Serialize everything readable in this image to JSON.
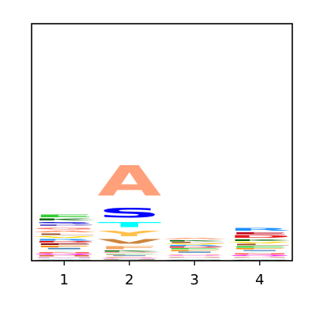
{
  "chart_data": {
    "type": "sequence-logo",
    "title": "",
    "xlabel": "",
    "ylabel": "",
    "ylim": [
      0,
      4.32
    ],
    "categories": [
      "1",
      "2",
      "3",
      "4"
    ],
    "grid": false,
    "positions": [
      {
        "label": "1",
        "stack": [
          {
            "letter": "W",
            "value": 0.02,
            "color": "#8b4513"
          },
          {
            "letter": "C",
            "value": 0.02,
            "color": "#20b2aa"
          },
          {
            "letter": "M",
            "value": 0.03,
            "color": "#dda0dd"
          },
          {
            "letter": "H",
            "value": 0.03,
            "color": "#d2691e"
          },
          {
            "letter": "Q",
            "value": 0.03,
            "color": "#ff00ff"
          },
          {
            "letter": "N",
            "value": 0.03,
            "color": "#ff6347"
          },
          {
            "letter": "T",
            "value": 0.04,
            "color": "#e0ffff"
          },
          {
            "letter": "I",
            "value": 0.04,
            "color": "#4682b4"
          },
          {
            "letter": "F",
            "value": 0.04,
            "color": "#ff8c00"
          },
          {
            "letter": "E",
            "value": 0.04,
            "color": "#8b0000"
          },
          {
            "letter": "D",
            "value": 0.04,
            "color": "#e41a1c"
          },
          {
            "letter": "R",
            "value": 0.05,
            "color": "#1e90ff"
          },
          {
            "letter": "V",
            "value": 0.05,
            "color": "#ffd700"
          },
          {
            "letter": "L",
            "value": 0.05,
            "color": "#a0522d"
          },
          {
            "letter": "A",
            "value": 0.05,
            "color": "#ff7f50"
          },
          {
            "letter": "G",
            "value": 0.06,
            "color": "#fa8072"
          },
          {
            "letter": "P",
            "value": 0.05,
            "color": "#6a5acd"
          },
          {
            "letter": "S",
            "value": 0.05,
            "color": "#0000cd"
          },
          {
            "letter": "K",
            "value": 0.06,
            "color": "#006400"
          },
          {
            "letter": "E",
            "value": 0.07,
            "color": "#32cd32"
          }
        ]
      },
      {
        "label": "2",
        "stack": [
          {
            "letter": "W",
            "value": 0.01,
            "color": "#8b4513"
          },
          {
            "letter": "C",
            "value": 0.01,
            "color": "#20b2aa"
          },
          {
            "letter": "H",
            "value": 0.01,
            "color": "#d2691e"
          },
          {
            "letter": "M",
            "value": 0.01,
            "color": "#dda0dd"
          },
          {
            "letter": "Q",
            "value": 0.02,
            "color": "#ff00ff"
          },
          {
            "letter": "F",
            "value": 0.02,
            "color": "#ff8c00"
          },
          {
            "letter": "I",
            "value": 0.02,
            "color": "#4682b4"
          },
          {
            "letter": "L",
            "value": 0.02,
            "color": "#a0522d"
          },
          {
            "letter": "E",
            "value": 0.02,
            "color": "#32cd32"
          },
          {
            "letter": "D",
            "value": 0.02,
            "color": "#e41a1c"
          },
          {
            "letter": "K",
            "value": 0.03,
            "color": "#006400"
          },
          {
            "letter": "F",
            "value": 0.09,
            "color": "#f4a460"
          },
          {
            "letter": "V",
            "value": 0.13,
            "color": "#cd853f"
          },
          {
            "letter": "Y",
            "value": 0.17,
            "color": "#ffc04d"
          },
          {
            "letter": "T",
            "value": 0.15,
            "color": "#00ffff"
          },
          {
            "letter": "S",
            "value": 0.28,
            "color": "#0000ff"
          },
          {
            "letter": "A",
            "value": 0.88,
            "color": "#ffa07a"
          }
        ]
      },
      {
        "label": "3",
        "stack": [
          {
            "letter": "W",
            "value": 0.02,
            "color": "#8b4513"
          },
          {
            "letter": "C",
            "value": 0.02,
            "color": "#20b2aa"
          },
          {
            "letter": "M",
            "value": 0.02,
            "color": "#dda0dd"
          },
          {
            "letter": "H",
            "value": 0.02,
            "color": "#d2691e"
          },
          {
            "letter": "Q",
            "value": 0.02,
            "color": "#ff00ff"
          },
          {
            "letter": "N",
            "value": 0.02,
            "color": "#ff6347"
          },
          {
            "letter": "T",
            "value": 0.02,
            "color": "#e0ffff"
          },
          {
            "letter": "I",
            "value": 0.03,
            "color": "#4682b4"
          },
          {
            "letter": "F",
            "value": 0.03,
            "color": "#ff8c00"
          },
          {
            "letter": "E",
            "value": 0.03,
            "color": "#32cd32"
          },
          {
            "letter": "D",
            "value": 0.03,
            "color": "#e41a1c"
          },
          {
            "letter": "R",
            "value": 0.03,
            "color": "#1e90ff"
          },
          {
            "letter": "V",
            "value": 0.03,
            "color": "#ffd700"
          },
          {
            "letter": "L",
            "value": 0.03,
            "color": "#a0522d"
          },
          {
            "letter": "K",
            "value": 0.03,
            "color": "#006400"
          },
          {
            "letter": "A",
            "value": 0.04,
            "color": "#ffa07a"
          }
        ]
      },
      {
        "label": "4",
        "stack": [
          {
            "letter": "W",
            "value": 0.02,
            "color": "#8b4513"
          },
          {
            "letter": "C",
            "value": 0.02,
            "color": "#20b2aa"
          },
          {
            "letter": "M",
            "value": 0.02,
            "color": "#dda0dd"
          },
          {
            "letter": "H",
            "value": 0.02,
            "color": "#d2691e"
          },
          {
            "letter": "Q",
            "value": 0.03,
            "color": "#ff00ff"
          },
          {
            "letter": "N",
            "value": 0.03,
            "color": "#ff6347"
          },
          {
            "letter": "T",
            "value": 0.03,
            "color": "#e0ffff"
          },
          {
            "letter": "I",
            "value": 0.03,
            "color": "#4682b4"
          },
          {
            "letter": "F",
            "value": 0.03,
            "color": "#ff8c00"
          },
          {
            "letter": "E",
            "value": 0.04,
            "color": "#32cd32"
          },
          {
            "letter": "L",
            "value": 0.04,
            "color": "#a0522d"
          },
          {
            "letter": "V",
            "value": 0.04,
            "color": "#ffd700"
          },
          {
            "letter": "K",
            "value": 0.05,
            "color": "#006400"
          },
          {
            "letter": "D",
            "value": 0.07,
            "color": "#e41a1c"
          },
          {
            "letter": "E",
            "value": 0.06,
            "color": "#c0001c"
          },
          {
            "letter": "R",
            "value": 0.07,
            "color": "#1e90ff"
          }
        ]
      }
    ]
  }
}
